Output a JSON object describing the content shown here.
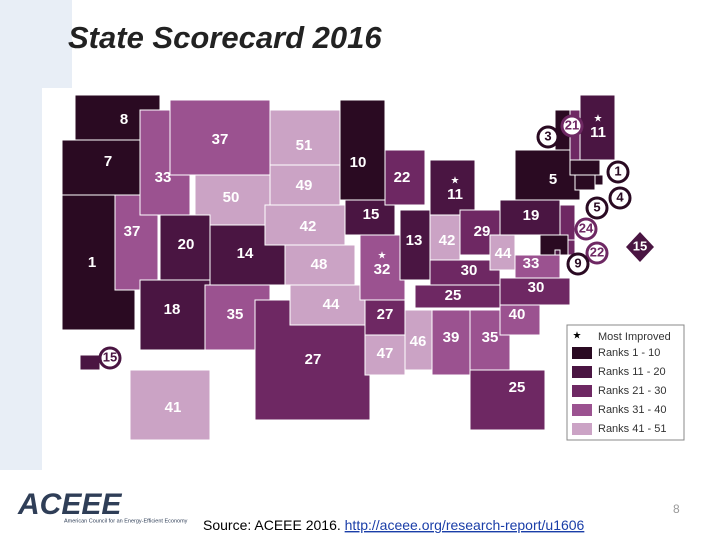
{
  "header": {
    "title": "State Scorecard 2016"
  },
  "map": {
    "states": [
      {
        "rank": 8
      },
      {
        "rank": 7
      },
      {
        "rank": 1
      },
      {
        "rank": 37
      },
      {
        "rank": 33
      },
      {
        "rank": 37
      },
      {
        "rank": 50
      },
      {
        "rank": 20
      },
      {
        "rank": 14
      },
      {
        "rank": 18
      },
      {
        "rank": 35
      },
      {
        "rank": 51
      },
      {
        "rank": 49
      },
      {
        "rank": 42
      },
      {
        "rank": 48
      },
      {
        "rank": 27
      },
      {
        "rank": 44
      },
      {
        "rank": 10
      },
      {
        "rank": 15
      },
      {
        "rank": 32,
        "most_improved": true
      },
      {
        "rank": 27
      },
      {
        "rank": 47
      },
      {
        "rank": 22
      },
      {
        "rank": 13
      },
      {
        "rank": 11,
        "most_improved": true
      },
      {
        "rank": 42
      },
      {
        "rank": 29
      },
      {
        "rank": 30
      },
      {
        "rank": 25
      },
      {
        "rank": 46
      },
      {
        "rank": 39
      },
      {
        "rank": 35
      },
      {
        "rank": 25
      },
      {
        "rank": 40
      },
      {
        "rank": 30
      },
      {
        "rank": 33
      },
      {
        "rank": 44
      },
      {
        "rank": 19
      },
      {
        "rank": 5
      },
      {
        "rank": 3
      },
      {
        "rank": 21
      },
      {
        "rank": 11,
        "most_improved": true
      },
      {
        "rank": 1
      },
      {
        "rank": 4
      },
      {
        "rank": 5
      },
      {
        "rank": 24
      },
      {
        "rank": 22
      },
      {
        "rank": 9
      },
      {
        "rank": 15
      },
      {
        "rank": 15
      },
      {
        "rank": 41
      }
    ],
    "legend": {
      "most_improved": "Most Improved",
      "items": [
        {
          "label": "Ranks 1 - 10",
          "color": "#2a0a22"
        },
        {
          "label": "Ranks 11 - 20",
          "color": "#4a1542"
        },
        {
          "label": "Ranks 21 - 30",
          "color": "#6e2863"
        },
        {
          "label": "Ranks 31 - 40",
          "color": "#9b5290"
        },
        {
          "label": "Ranks 41 - 51",
          "color": "#cba3c5"
        }
      ]
    }
  },
  "footer": {
    "logo": "ACEEE",
    "logo_subtitle": "American Council for an Energy-Efficient Economy",
    "page_number": "8",
    "source": "Source: ACEEE 2016. ",
    "link": "http://aceee.org/research-report/u1606"
  }
}
